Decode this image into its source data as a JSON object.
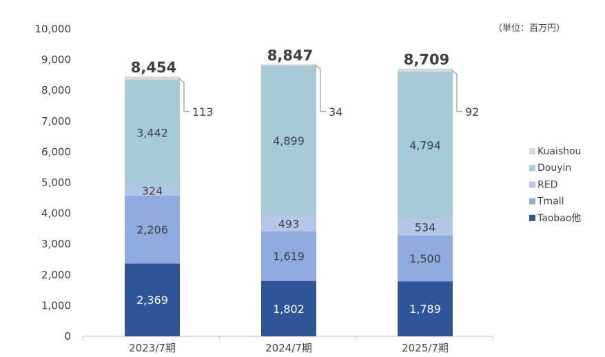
{
  "chart_data": {
    "type": "bar",
    "stacked": true,
    "unit_note": "（単位：百万円）",
    "title": "",
    "xlabel": "",
    "ylabel": "",
    "categories": [
      "2023/7期",
      "2024/7期",
      "2025/7期"
    ],
    "ylim": [
      0,
      10000
    ],
    "yticks": [
      0,
      1000,
      2000,
      3000,
      4000,
      5000,
      6000,
      7000,
      8000,
      9000,
      10000
    ],
    "ytick_labels": [
      "0",
      "1,000",
      "2,000",
      "3,000",
      "4,000",
      "5,000",
      "6,000",
      "7,000",
      "8,000",
      "9,000",
      "10,000"
    ],
    "series": [
      {
        "name": "Taobao他",
        "color": "#2e5597",
        "label_color": "#ffffff",
        "values": [
          2369,
          1802,
          1789
        ],
        "labels": [
          "2,369",
          "1,802",
          "1,789"
        ]
      },
      {
        "name": "Tmall",
        "color": "#8faadc",
        "label_color": "#404040",
        "values": [
          2206,
          1619,
          1500
        ],
        "labels": [
          "2,206",
          "1,619",
          "1,500"
        ]
      },
      {
        "name": "RED",
        "color": "#b4c7e7",
        "label_color": "#404040",
        "values": [
          324,
          493,
          534
        ],
        "labels": [
          "324",
          "493",
          "534"
        ]
      },
      {
        "name": "Douyin",
        "color": "#a6cbd8",
        "label_color": "#404040",
        "values": [
          3442,
          4899,
          4794
        ],
        "labels": [
          "3,442",
          "4,899",
          "4,794"
        ]
      },
      {
        "name": "Kuaishou",
        "color": "#d9d9d9",
        "label_color": "#404040",
        "values": [
          113,
          34,
          92
        ],
        "labels": [
          "113",
          "34",
          "92"
        ]
      }
    ],
    "totals": [
      8454,
      8847,
      8709
    ],
    "total_labels": [
      "8,454",
      "8,847",
      "8,709"
    ],
    "legend_order": [
      "Kuaishou",
      "Douyin",
      "RED",
      "Tmall",
      "Taobao他"
    ],
    "legend_position": "right",
    "grid": false
  }
}
